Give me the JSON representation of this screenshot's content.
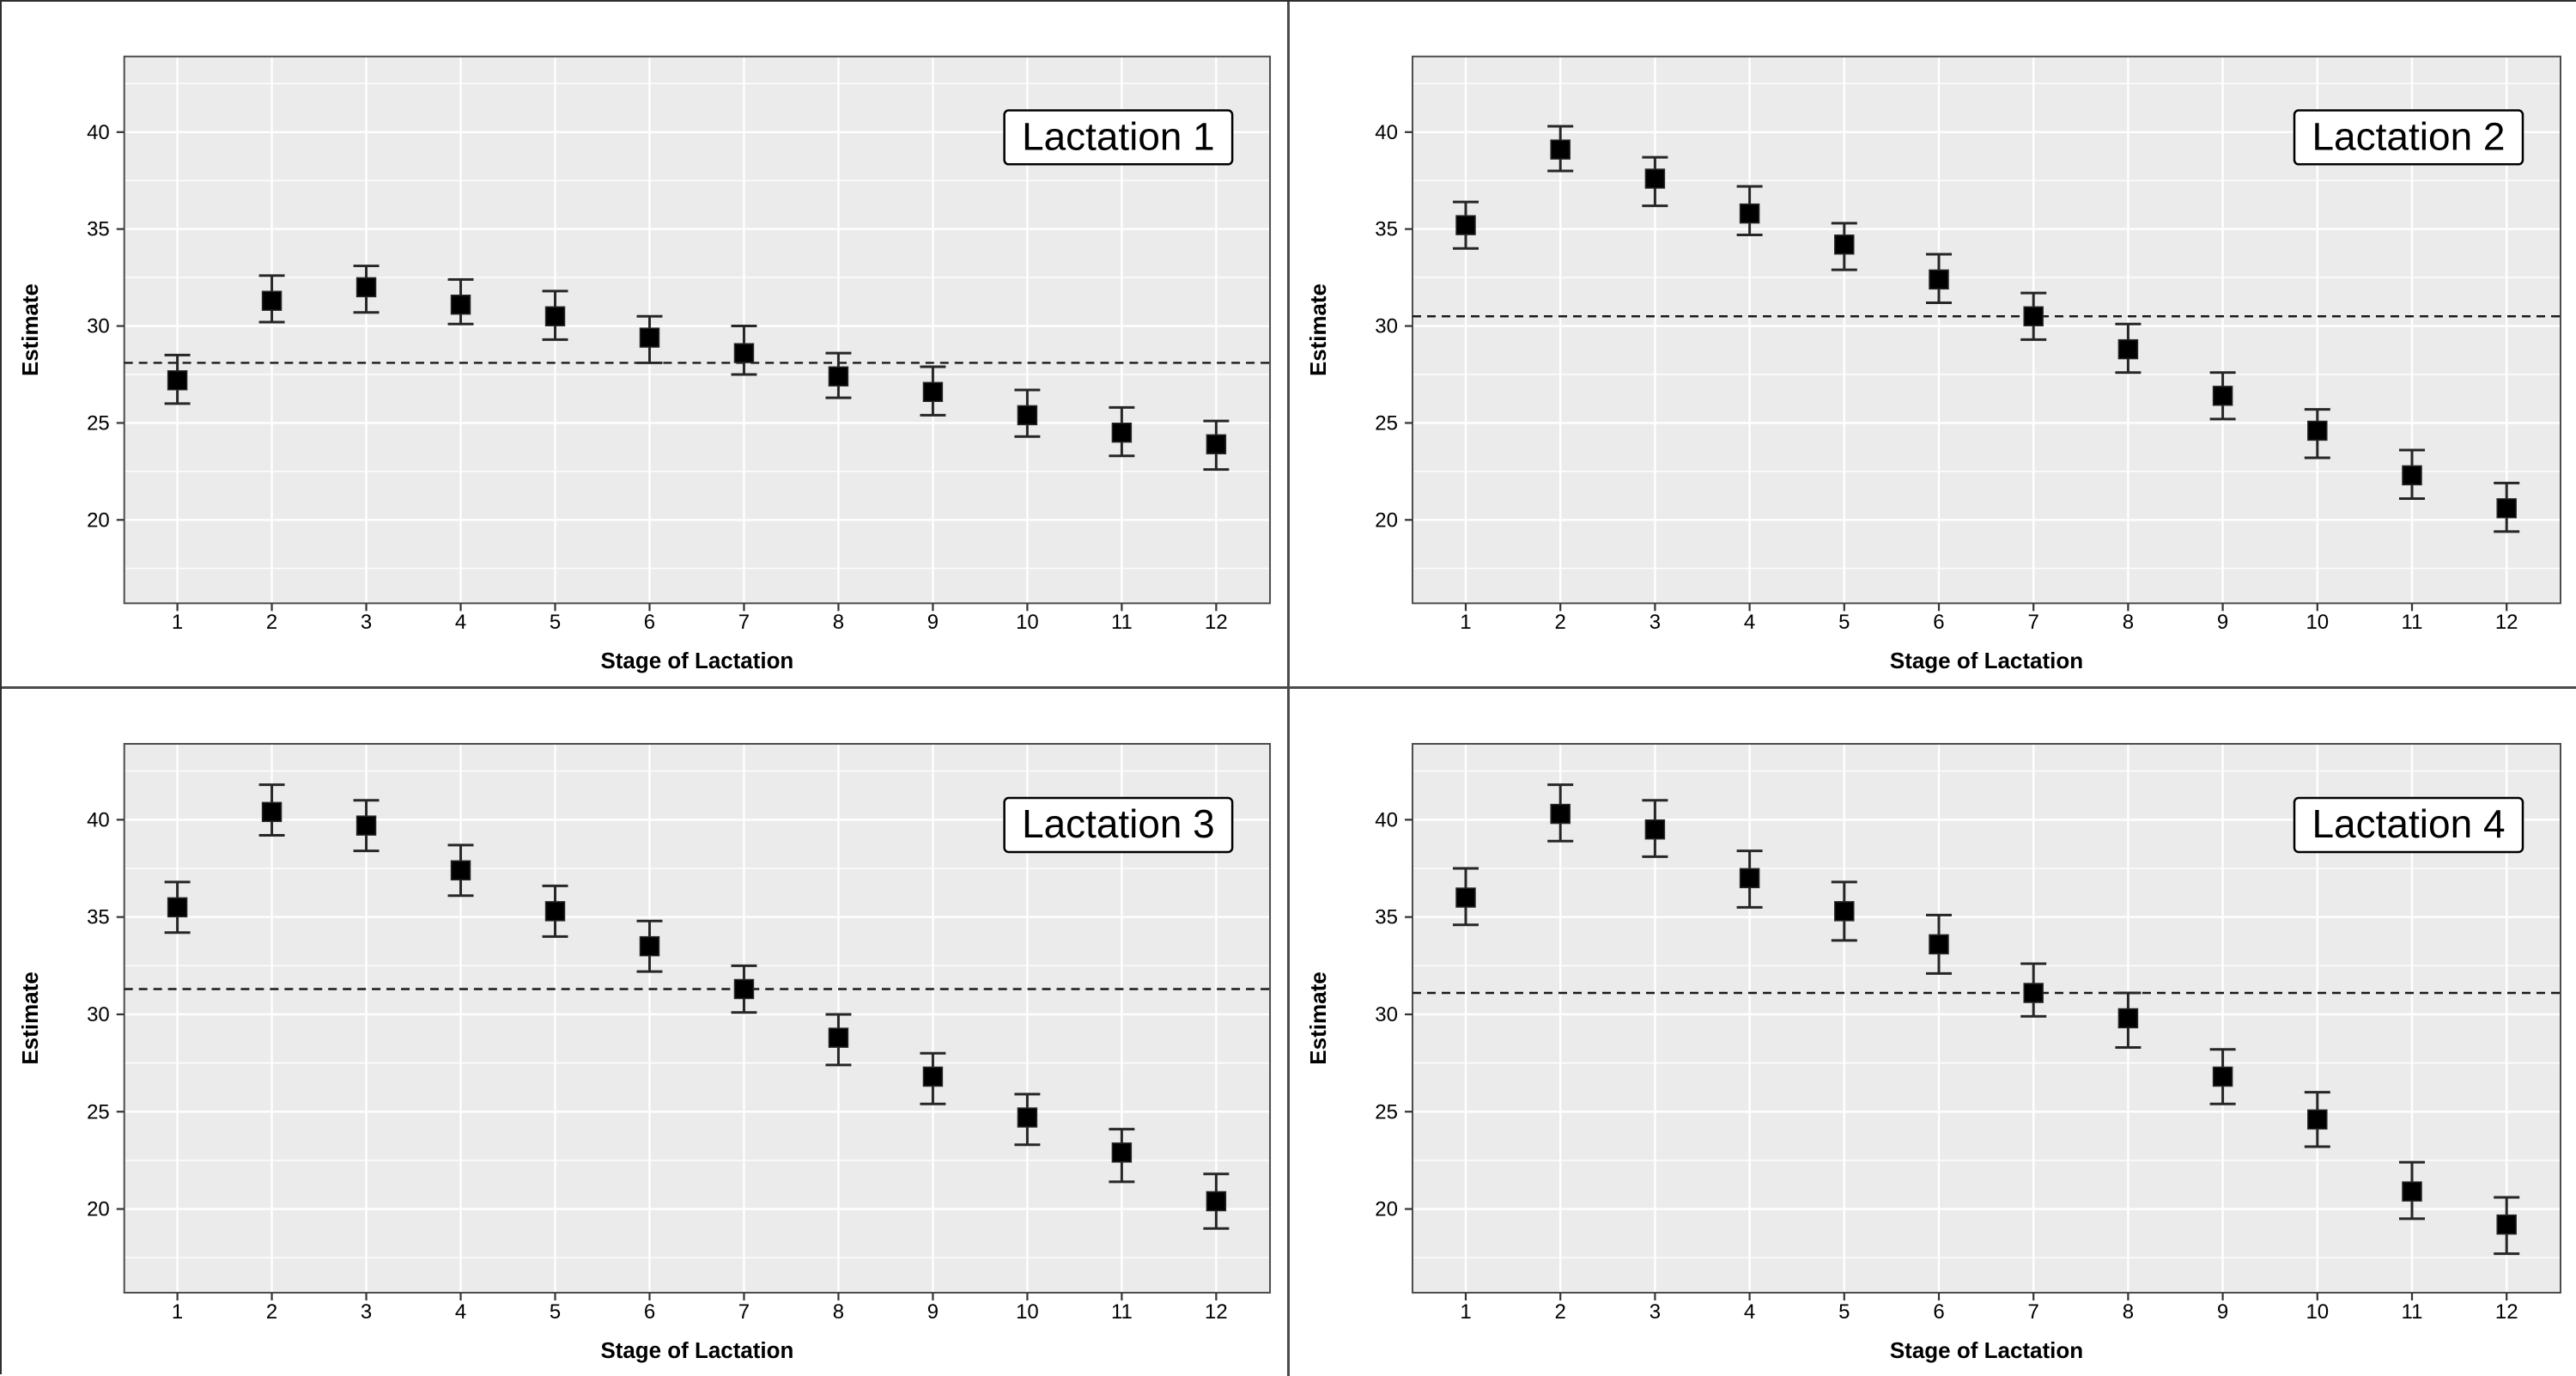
{
  "figure": {
    "kind": "2x2 panel grid of mean-and-error-bar scatter plots",
    "background": "#ffffff",
    "separator_color": "#4a4a4a"
  },
  "style": {
    "plot_bg": "#ebebeb",
    "grid_color": "#ffffff",
    "axis_color": "#4d4d4d",
    "tick_color": "#333333",
    "text_color": "#000000",
    "marker_color": "#000000",
    "whisker_color": "#262626",
    "ref_line_color": "#1a1a1a",
    "label_box_fill": "#ffffff",
    "label_box_border": "#000000"
  },
  "chart_data": [
    {
      "type": "scatter",
      "panel_label": "Lactation 1",
      "xlabel": "Stage of Lactation",
      "ylabel": "Estimate",
      "x": [
        1,
        2,
        3,
        4,
        5,
        6,
        7,
        8,
        9,
        10,
        11,
        12
      ],
      "estimates": [
        27.2,
        31.3,
        32.0,
        31.1,
        30.5,
        29.4,
        28.6,
        27.4,
        26.6,
        25.4,
        24.5,
        23.9
      ],
      "lower": [
        26.0,
        30.2,
        30.7,
        30.1,
        29.3,
        28.1,
        27.5,
        26.3,
        25.4,
        24.3,
        23.3,
        22.6
      ],
      "upper": [
        28.5,
        32.6,
        33.1,
        32.4,
        31.8,
        30.5,
        30.0,
        28.6,
        27.9,
        26.7,
        25.8,
        25.1
      ],
      "reference_line": 28.1,
      "y_ticks": [
        20,
        25,
        30,
        35,
        40
      ],
      "y_minor_ticks": [
        17.5,
        22.5,
        27.5,
        32.5,
        37.5,
        42.5
      ],
      "ylim": [
        15.7,
        43.9
      ],
      "grid": true,
      "legend": "none"
    },
    {
      "type": "scatter",
      "panel_label": "Lactation 2",
      "xlabel": "Stage of Lactation",
      "ylabel": "Estimate",
      "x": [
        1,
        2,
        3,
        4,
        5,
        6,
        7,
        8,
        9,
        10,
        11,
        12
      ],
      "estimates": [
        35.2,
        39.1,
        37.6,
        35.8,
        34.2,
        32.4,
        30.5,
        28.8,
        26.4,
        24.6,
        22.3,
        20.6
      ],
      "lower": [
        34.0,
        38.0,
        36.2,
        34.7,
        32.9,
        31.2,
        29.3,
        27.6,
        25.2,
        23.2,
        21.1,
        19.4
      ],
      "upper": [
        36.4,
        40.3,
        38.7,
        37.2,
        35.3,
        33.7,
        31.7,
        30.1,
        27.6,
        25.7,
        23.6,
        21.9
      ],
      "reference_line": 30.5,
      "y_ticks": [
        20,
        25,
        30,
        35,
        40
      ],
      "y_minor_ticks": [
        17.5,
        22.5,
        27.5,
        32.5,
        37.5,
        42.5
      ],
      "ylim": [
        15.7,
        43.9
      ],
      "grid": true,
      "legend": "none"
    },
    {
      "type": "scatter",
      "panel_label": "Lactation 3",
      "xlabel": "Stage of Lactation",
      "ylabel": "Estimate",
      "x": [
        1,
        2,
        3,
        4,
        5,
        6,
        7,
        8,
        9,
        10,
        11,
        12
      ],
      "estimates": [
        35.5,
        40.4,
        39.7,
        37.4,
        35.3,
        33.5,
        31.3,
        28.8,
        26.8,
        24.7,
        22.9,
        20.4
      ],
      "lower": [
        34.2,
        39.2,
        38.4,
        36.1,
        34.0,
        32.2,
        30.1,
        27.4,
        25.4,
        23.3,
        21.4,
        19.0
      ],
      "upper": [
        36.8,
        41.8,
        41.0,
        38.7,
        36.6,
        34.8,
        32.5,
        30.0,
        28.0,
        25.9,
        24.1,
        21.8
      ],
      "reference_line": 31.3,
      "y_ticks": [
        20,
        25,
        30,
        35,
        40
      ],
      "y_minor_ticks": [
        17.5,
        22.5,
        27.5,
        32.5,
        37.5,
        42.5
      ],
      "ylim": [
        15.7,
        43.9
      ],
      "grid": true,
      "legend": "none"
    },
    {
      "type": "scatter",
      "panel_label": "Lactation 4",
      "xlabel": "Stage of Lactation",
      "ylabel": "Estimate",
      "x": [
        1,
        2,
        3,
        4,
        5,
        6,
        7,
        8,
        9,
        10,
        11,
        12
      ],
      "estimates": [
        36.0,
        40.3,
        39.5,
        37.0,
        35.3,
        33.6,
        31.1,
        29.8,
        26.8,
        24.6,
        20.9,
        19.2
      ],
      "lower": [
        34.6,
        38.9,
        38.1,
        35.5,
        33.8,
        32.1,
        29.9,
        28.3,
        25.4,
        23.2,
        19.5,
        17.7
      ],
      "upper": [
        37.5,
        41.8,
        41.0,
        38.4,
        36.8,
        35.1,
        32.6,
        31.1,
        28.2,
        26.0,
        22.4,
        20.6
      ],
      "reference_line": 31.1,
      "y_ticks": [
        20,
        25,
        30,
        35,
        40
      ],
      "y_minor_ticks": [
        17.5,
        22.5,
        27.5,
        32.5,
        37.5,
        42.5
      ],
      "ylim": [
        15.7,
        43.9
      ],
      "grid": true,
      "legend": "none"
    }
  ]
}
